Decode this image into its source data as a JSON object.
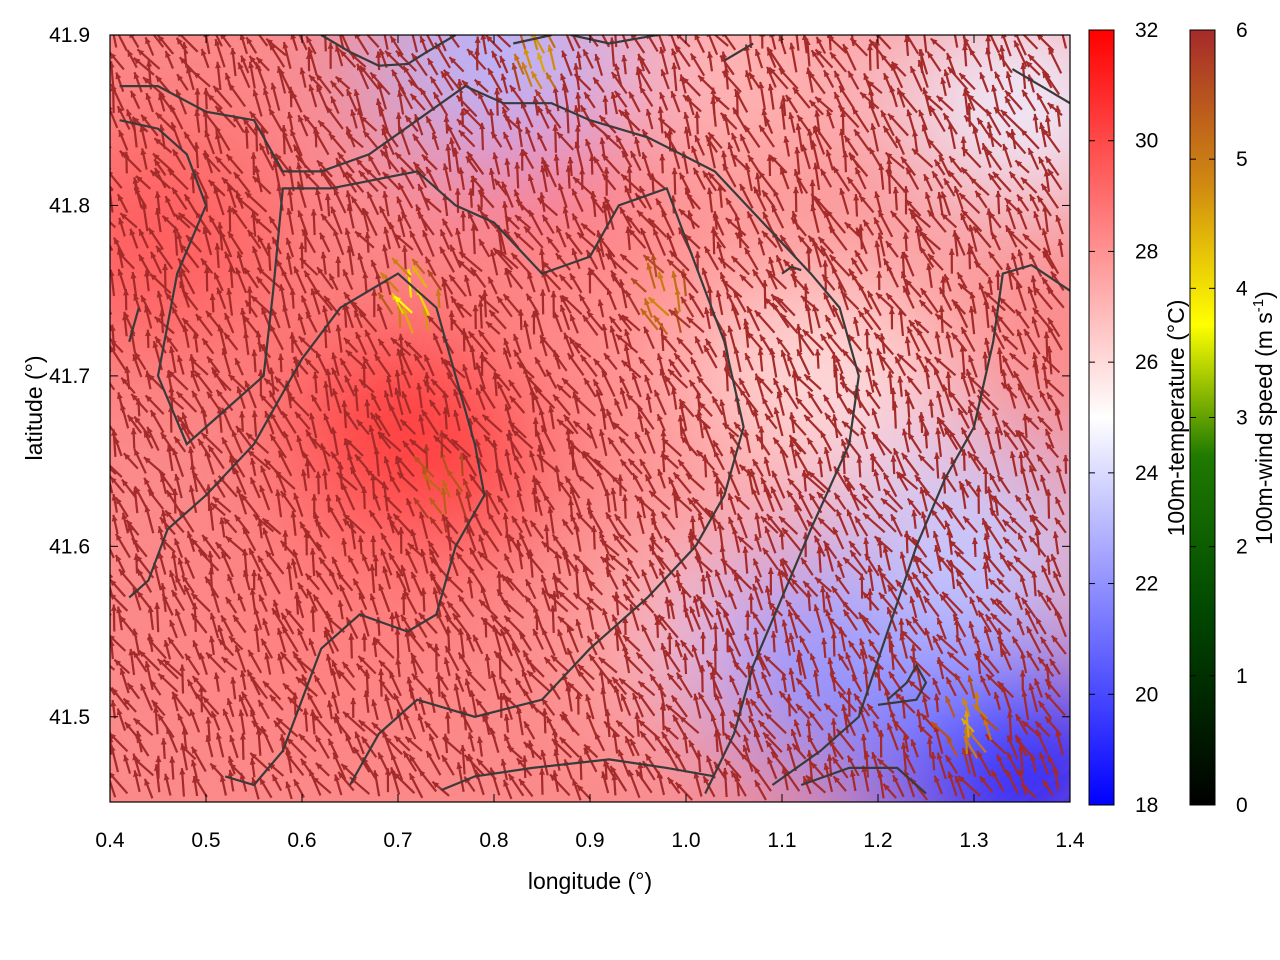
{
  "chart_data": {
    "type": "heatmap",
    "subtype": "temperature field with wind vectors and orography contours",
    "xlabel": "longitude (°)",
    "ylabel": "latitude (°)",
    "xlim": [
      0.4,
      1.4
    ],
    "ylim": [
      41.45,
      41.9
    ],
    "xticks": [
      "0.4",
      "0.5",
      "0.6",
      "0.7",
      "0.8",
      "0.9",
      "1.0",
      "1.1",
      "1.2",
      "1.3",
      "1.4"
    ],
    "yticks": [
      "41.5",
      "41.6",
      "41.7",
      "41.8",
      "41.9"
    ],
    "grid": false,
    "temperature_colorbar": {
      "label": "100m-temperature (°C)",
      "range": [
        18,
        32
      ],
      "ticks": [
        "18",
        "20",
        "22",
        "24",
        "26",
        "28",
        "30",
        "32"
      ],
      "colors": [
        "#0000ff",
        "#ffffff",
        "#ff0000"
      ]
    },
    "wind_colorbar": {
      "label_main": "100m-wind speed (m s",
      "label_sup": "-1",
      "label_end": ")",
      "range": [
        0,
        6
      ],
      "ticks": [
        "0",
        "1",
        "2",
        "3",
        "4",
        "5",
        "6"
      ],
      "colors": [
        "#000000",
        "#005a00",
        "#2a8a00",
        "#ffff00",
        "#d08a10",
        "#a52a2a"
      ]
    },
    "temperature_regions": [
      {
        "lon": 0.72,
        "lat": 41.66,
        "temp": 30.5
      },
      {
        "lon": 0.45,
        "lat": 41.78,
        "temp": 29.5
      },
      {
        "lon": 0.85,
        "lat": 41.84,
        "temp": 29.0
      },
      {
        "lon": 0.95,
        "lat": 41.72,
        "temp": 28.0
      },
      {
        "lon": 0.62,
        "lat": 41.55,
        "temp": 28.5
      },
      {
        "lon": 1.05,
        "lat": 41.88,
        "temp": 27.0
      },
      {
        "lon": 1.35,
        "lat": 41.86,
        "temp": 24.5
      },
      {
        "lon": 0.8,
        "lat": 41.89,
        "temp": 23.0
      },
      {
        "lon": 1.15,
        "lat": 41.7,
        "temp": 26.0
      },
      {
        "lon": 1.05,
        "lat": 41.55,
        "temp": 26.5
      },
      {
        "lon": 1.25,
        "lat": 41.5,
        "temp": 19.5
      },
      {
        "lon": 1.35,
        "lat": 41.47,
        "temp": 19.0
      },
      {
        "lon": 1.15,
        "lat": 41.53,
        "temp": 22.0
      },
      {
        "lon": 1.3,
        "lat": 41.6,
        "temp": 23.5
      }
    ],
    "wind_field": {
      "prevailing_direction": "toward north-west",
      "typical_speed": 6,
      "weak_wind_zones": [
        {
          "lon": 0.72,
          "lat": 41.74,
          "speed": 3.5
        },
        {
          "lon": 0.85,
          "lat": 41.88,
          "speed": 4.5
        },
        {
          "lon": 0.98,
          "lat": 41.74,
          "speed": 4.8
        },
        {
          "lon": 1.3,
          "lat": 41.49,
          "speed": 4.5
        },
        {
          "lon": 0.75,
          "lat": 41.63,
          "speed": 5.2
        }
      ]
    },
    "contours": [
      [
        [
          0.42,
          41.57
        ],
        [
          0.44,
          41.58
        ],
        [
          0.46,
          41.61
        ],
        [
          0.5,
          41.63
        ],
        [
          0.55,
          41.66
        ],
        [
          0.6,
          41.71
        ],
        [
          0.64,
          41.74
        ],
        [
          0.7,
          41.76
        ],
        [
          0.74,
          41.74
        ],
        [
          0.76,
          41.7
        ],
        [
          0.78,
          41.66
        ],
        [
          0.79,
          41.63
        ],
        [
          0.76,
          41.6
        ],
        [
          0.74,
          41.56
        ],
        [
          0.71,
          41.55
        ],
        [
          0.66,
          41.56
        ],
        [
          0.62,
          41.54
        ],
        [
          0.6,
          41.51
        ],
        [
          0.58,
          41.48
        ],
        [
          0.55,
          41.46
        ],
        [
          0.52,
          41.465
        ]
      ],
      [
        [
          0.41,
          41.85
        ],
        [
          0.45,
          41.845
        ],
        [
          0.48,
          41.83
        ],
        [
          0.5,
          41.8
        ],
        [
          0.47,
          41.76
        ],
        [
          0.45,
          41.7
        ],
        [
          0.48,
          41.66
        ],
        [
          0.52,
          41.68
        ],
        [
          0.56,
          41.7
        ],
        [
          0.57,
          41.75
        ],
        [
          0.58,
          41.81
        ],
        [
          0.63,
          41.81
        ],
        [
          0.72,
          41.82
        ],
        [
          0.76,
          41.8
        ],
        [
          0.8,
          41.79
        ],
        [
          0.85,
          41.76
        ],
        [
          0.9,
          41.77
        ],
        [
          0.93,
          41.8
        ],
        [
          0.98,
          41.81
        ],
        [
          1.0,
          41.78
        ],
        [
          1.02,
          41.75
        ],
        [
          1.04,
          41.72
        ],
        [
          1.06,
          41.67
        ],
        [
          1.04,
          41.63
        ],
        [
          1.01,
          41.6
        ],
        [
          0.96,
          41.57
        ],
        [
          0.9,
          41.54
        ],
        [
          0.85,
          41.51
        ],
        [
          0.78,
          41.5
        ],
        [
          0.72,
          41.51
        ],
        [
          0.68,
          41.49
        ],
        [
          0.65,
          41.46
        ]
      ],
      [
        [
          0.41,
          41.87
        ],
        [
          0.45,
          41.87
        ],
        [
          0.5,
          41.855
        ],
        [
          0.55,
          41.85
        ],
        [
          0.58,
          41.82
        ],
        [
          0.62,
          41.82
        ],
        [
          0.67,
          41.83
        ],
        [
          0.72,
          41.85
        ],
        [
          0.77,
          41.87
        ],
        [
          0.81,
          41.86
        ],
        [
          0.86,
          41.86
        ],
        [
          0.9,
          41.85
        ],
        [
          0.96,
          41.84
        ],
        [
          1.03,
          41.82
        ],
        [
          1.08,
          41.79
        ],
        [
          1.13,
          41.76
        ],
        [
          1.16,
          41.74
        ],
        [
          1.18,
          41.7
        ],
        [
          1.17,
          41.66
        ],
        [
          1.13,
          41.61
        ],
        [
          1.1,
          41.57
        ],
        [
          1.07,
          41.53
        ],
        [
          1.05,
          41.49
        ],
        [
          1.02,
          41.455
        ]
      ],
      [
        [
          1.09,
          41.46
        ],
        [
          1.14,
          41.48
        ],
        [
          1.18,
          41.5
        ],
        [
          1.21,
          41.55
        ],
        [
          1.24,
          41.6
        ],
        [
          1.27,
          41.64
        ],
        [
          1.3,
          41.67
        ],
        [
          1.32,
          41.72
        ],
        [
          1.33,
          41.76
        ],
        [
          1.36,
          41.765
        ],
        [
          1.4,
          41.75
        ]
      ],
      [
        [
          0.745,
          41.457
        ],
        [
          0.78,
          41.465
        ],
        [
          0.84,
          41.47
        ],
        [
          0.92,
          41.475
        ],
        [
          0.98,
          41.47
        ],
        [
          1.03,
          41.465
        ]
      ],
      [
        [
          1.12,
          41.46
        ],
        [
          1.17,
          41.47
        ],
        [
          1.22,
          41.47
        ],
        [
          1.25,
          41.455
        ]
      ],
      [
        [
          1.2,
          41.507
        ],
        [
          1.24,
          41.51
        ],
        [
          1.25,
          41.52
        ],
        [
          1.24,
          41.53
        ],
        [
          1.23,
          41.52
        ],
        [
          1.21,
          41.51
        ]
      ],
      [
        [
          1.1,
          41.76
        ],
        [
          1.11,
          41.764
        ],
        [
          1.12,
          41.762
        ]
      ],
      [
        [
          0.62,
          41.9
        ],
        [
          0.65,
          41.89
        ],
        [
          0.68,
          41.882
        ],
        [
          0.71,
          41.883
        ],
        [
          0.73,
          41.89
        ],
        [
          0.76,
          41.9
        ]
      ],
      [
        [
          0.82,
          41.895
        ],
        [
          0.86,
          41.9
        ]
      ],
      [
        [
          0.88,
          41.9
        ],
        [
          0.92,
          41.895
        ],
        [
          0.97,
          41.9
        ]
      ],
      [
        [
          1.04,
          41.885
        ],
        [
          1.07,
          41.895
        ]
      ],
      [
        [
          1.34,
          41.88
        ],
        [
          1.37,
          41.87
        ],
        [
          1.4,
          41.86
        ]
      ],
      [
        [
          0.42,
          41.72
        ],
        [
          0.43,
          41.74
        ]
      ]
    ]
  }
}
